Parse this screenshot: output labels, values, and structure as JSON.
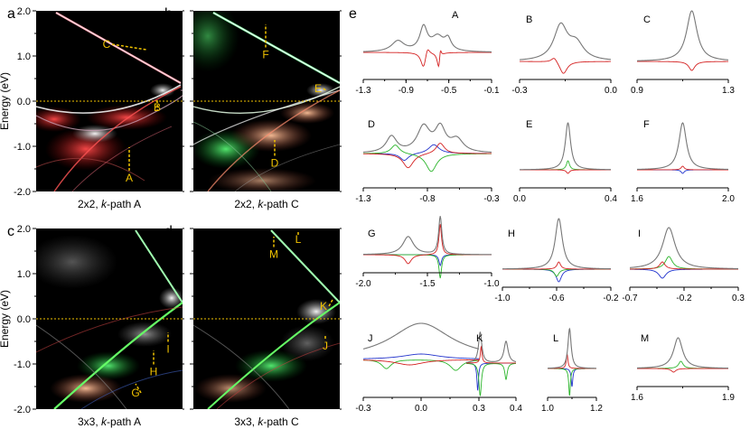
{
  "chart_data": [
    {
      "type": "heatmap",
      "panel_letter": "a",
      "title": "2x2, k-path A",
      "ylabel": "Energy (eV)",
      "ylim": [
        -2.0,
        2.0
      ],
      "yticks": [
        "2.0",
        "1.0",
        "0.0",
        "-1.0",
        "-2.0"
      ],
      "fermi_level": 0.0,
      "annotations": [
        {
          "label": "C",
          "energy": 1.18
        },
        {
          "label": "B",
          "energy": -0.22
        },
        {
          "label": "A",
          "energy": -1.78
        }
      ]
    },
    {
      "type": "heatmap",
      "panel_letter": "b",
      "title": "2x2, k-path C",
      "ylim": [
        -2.0,
        2.0
      ],
      "fermi_level": 0.0,
      "annotations": [
        {
          "label": "F",
          "energy": 0.95
        },
        {
          "label": "E",
          "energy": 0.2
        },
        {
          "label": "D",
          "energy": -1.45
        }
      ]
    },
    {
      "type": "heatmap",
      "panel_letter": "c",
      "title": "3x3, k-path A",
      "ylabel": "Energy (eV)",
      "ylim": [
        -2.0,
        2.0
      ],
      "yticks": [
        "2.0",
        "1.0",
        "0.0",
        "-1.0",
        "-2.0"
      ],
      "fermi_level": 0.0,
      "annotations": [
        {
          "label": "I",
          "energy": -0.75
        },
        {
          "label": "H",
          "energy": -1.25
        },
        {
          "label": "G",
          "energy": -1.72
        }
      ]
    },
    {
      "type": "heatmap",
      "panel_letter": "d",
      "title": "3x3, k-path C",
      "ylim": [
        -2.0,
        2.0
      ],
      "fermi_level": 0.0,
      "annotations": [
        {
          "label": "L",
          "energy": 1.68
        },
        {
          "label": "M",
          "energy": 1.35
        },
        {
          "label": "K",
          "energy": 0.2
        },
        {
          "label": "J",
          "energy": -0.68
        }
      ]
    },
    {
      "type": "line",
      "panel_letter": "e",
      "subplots": [
        {
          "label": "A",
          "xticks": [
            "-1.3",
            "-0.9",
            "-0.5",
            "-0.1"
          ]
        },
        {
          "label": "B",
          "xticks": [
            "-0.3",
            "0.0"
          ]
        },
        {
          "label": "C",
          "xticks": [
            "0.9",
            "1.3"
          ]
        },
        {
          "label": "D",
          "xticks": [
            "-1.3",
            "-0.8",
            "-0.3"
          ]
        },
        {
          "label": "E",
          "xticks": [
            "0.0",
            "0.4"
          ]
        },
        {
          "label": "F",
          "xticks": [
            "1.6",
            "2.0"
          ]
        },
        {
          "label": "G",
          "xticks": [
            "-2.0",
            "-1.5",
            "-1.0"
          ]
        },
        {
          "label": "H",
          "xticks": [
            "-1.0",
            "-0.6",
            "-0.2"
          ]
        },
        {
          "label": "I",
          "xticks": [
            "-0.7",
            "-0.2",
            "0.3"
          ]
        },
        {
          "label": "J",
          "xticks": [
            "-0.3",
            "0.0",
            "0.3"
          ]
        },
        {
          "label": "K",
          "xticks": [
            "0.4"
          ]
        },
        {
          "label": "L",
          "xticks": [
            "1.0",
            "1.2"
          ]
        },
        {
          "label": "M",
          "xticks": [
            "1.6",
            "1.9"
          ]
        }
      ],
      "series_colors": {
        "total": "#777777",
        "red": "#d42020",
        "green": "#2bb52b",
        "blue": "#2233cc"
      }
    }
  ]
}
